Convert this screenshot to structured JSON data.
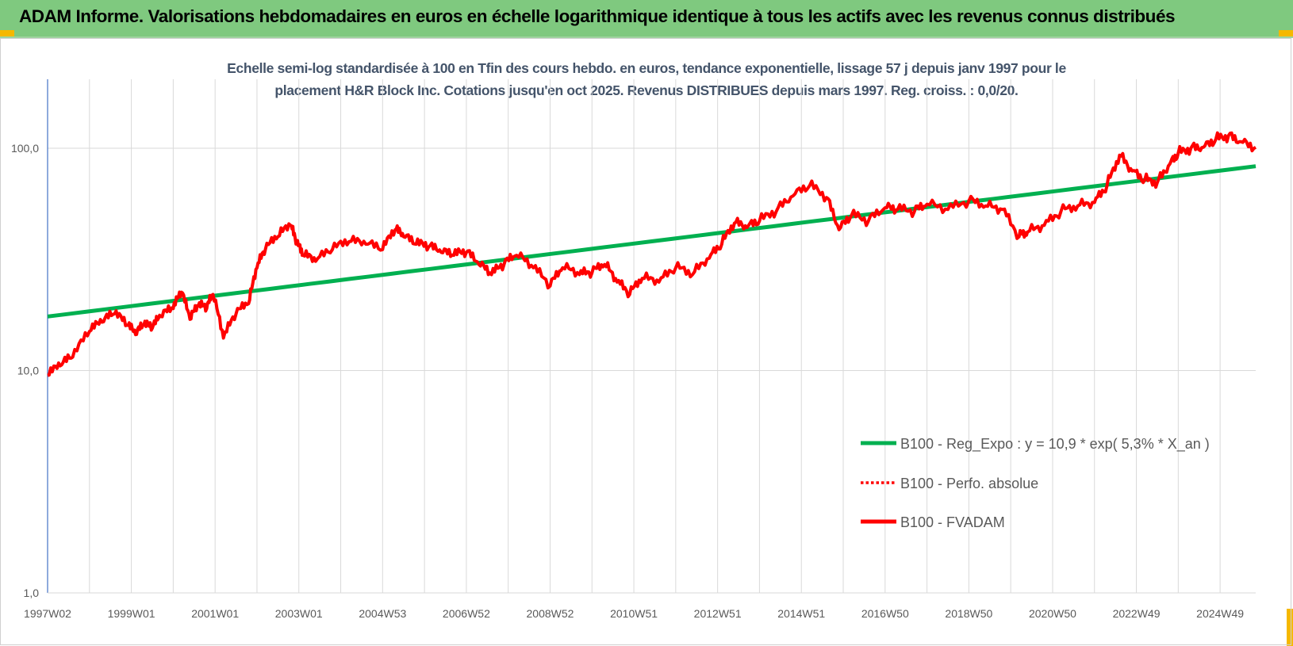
{
  "header": {
    "title": "ADAM Informe. Valorisations hebdomadaires en euros en échelle logarithmique identique à tous les actifs avec les revenus connus distribués"
  },
  "colors": {
    "banner": "#7fc97f",
    "corner_accent": "#f5b800",
    "regression": "#00b050",
    "fvadam": "#ff0000",
    "grid": "#d9d9d9",
    "subtitle": "#44546a"
  },
  "chart_data": {
    "type": "line",
    "title_line1": "Echelle semi-log standardisée à 100 en Tfin des cours hebdo. en euros, tendance exponentielle, lissage 57 j depuis janv 1997 pour le",
    "title_line2": "placement H&R Block Inc. Cotations jusqu'en oct 2025. Revenus DISTRIBUES depuis mars 1997. Reg. croiss. : 0,0/20.",
    "y_scale": "log",
    "ylim": [
      1,
      200
    ],
    "xlim": [
      1997.0,
      2025.85
    ],
    "y_ticks": [
      {
        "value": 1,
        "label": "1,0"
      },
      {
        "value": 10,
        "label": "10,0"
      },
      {
        "value": 100,
        "label": "100,0"
      }
    ],
    "x_ticks": [
      {
        "value": 1997.0,
        "label": "1997W02"
      },
      {
        "value": 1999.0,
        "label": "1999W01"
      },
      {
        "value": 2001.0,
        "label": "2001W01"
      },
      {
        "value": 2003.0,
        "label": "2003W01"
      },
      {
        "value": 2005.0,
        "label": "2004W53"
      },
      {
        "value": 2007.0,
        "label": "2006W52"
      },
      {
        "value": 2009.0,
        "label": "2008W52"
      },
      {
        "value": 2011.0,
        "label": "2010W51"
      },
      {
        "value": 2013.0,
        "label": "2012W51"
      },
      {
        "value": 2015.0,
        "label": "2014W51"
      },
      {
        "value": 2017.0,
        "label": "2016W50"
      },
      {
        "value": 2019.0,
        "label": "2018W50"
      },
      {
        "value": 2021.0,
        "label": "2020W50"
      },
      {
        "value": 2023.0,
        "label": "2022W49"
      },
      {
        "value": 2025.0,
        "label": "2024W49"
      }
    ],
    "gridlines": "vertical at every year, horizontal at decades",
    "legend_position": "bottom-right",
    "legend": [
      {
        "label": "B100 - Reg_Expo : y = 10,9 * exp( 5,3% *  X_an )",
        "style": "solid-green"
      },
      {
        "label": "B100 - Perfo. absolue",
        "style": "dotted-red"
      },
      {
        "label": "B100 - FVADAM",
        "style": "solid-red"
      }
    ],
    "series": [
      {
        "name": "B100 - Reg_Expo : y = 10,9 * exp( 5,3% *  X_an )",
        "kind": "exponential",
        "coefficient": 10.9,
        "rate": 0.053,
        "x0": 1997.0,
        "y_start": 17.5,
        "y_end": 83
      },
      {
        "name": "B100 - FVADAM",
        "x": [
          1997.0,
          1997.3,
          1997.6,
          1998.0,
          1998.3,
          1998.6,
          1998.9,
          1999.1,
          1999.3,
          1999.5,
          1999.7,
          2000.0,
          2000.2,
          2000.4,
          2000.6,
          2000.8,
          2000.95,
          2001.2,
          2001.5,
          2001.8,
          2002.0,
          2002.2,
          2002.5,
          2002.8,
          2002.95,
          2003.1,
          2003.4,
          2003.8,
          2004.2,
          2004.6,
          2005.0,
          2005.3,
          2005.5,
          2005.8,
          2006.1,
          2006.4,
          2006.7,
          2007.0,
          2007.3,
          2007.6,
          2007.9,
          2008.2,
          2008.6,
          2009.0,
          2009.3,
          2009.7,
          2010.0,
          2010.3,
          2010.6,
          2010.9,
          2011.2,
          2011.6,
          2012.0,
          2012.4,
          2012.8,
          2013.1,
          2013.4,
          2013.7,
          2014.0,
          2014.4,
          2014.8,
          2015.2,
          2015.6,
          2015.9,
          2016.2,
          2016.6,
          2017.0,
          2017.3,
          2017.7,
          2018.0,
          2018.5,
          2019.0,
          2019.4,
          2019.8,
          2020.2,
          2020.4,
          2020.8,
          2021.2,
          2021.6,
          2022.0,
          2022.3,
          2022.6,
          2022.9,
          2023.2,
          2023.5,
          2023.8,
          2024.0,
          2024.3,
          2024.6,
          2024.9,
          2025.2,
          2025.5,
          2025.85
        ],
        "values": [
          9.5,
          10.5,
          11.5,
          15,
          16.5,
          18,
          16,
          14.5,
          16,
          15.5,
          17.5,
          19,
          22.5,
          17,
          19.5,
          19,
          22,
          14,
          18,
          20,
          29,
          35,
          40,
          45,
          37,
          33,
          31,
          35,
          38,
          37,
          35,
          43,
          40,
          37,
          36,
          34,
          33,
          34,
          30,
          27,
          30,
          33,
          29,
          24,
          29,
          27,
          27.5,
          30,
          25,
          22,
          26,
          25,
          29,
          27,
          32,
          37,
          46,
          44,
          47,
          52,
          61,
          68,
          60,
          43,
          50,
          47,
          54,
          53,
          52,
          56,
          53,
          58,
          55,
          53,
          40,
          42,
          45,
          52,
          55,
          57,
          68,
          93,
          79,
          72,
          70,
          85,
          95,
          100,
          101,
          110,
          114,
          107,
          101
        ]
      }
    ]
  }
}
